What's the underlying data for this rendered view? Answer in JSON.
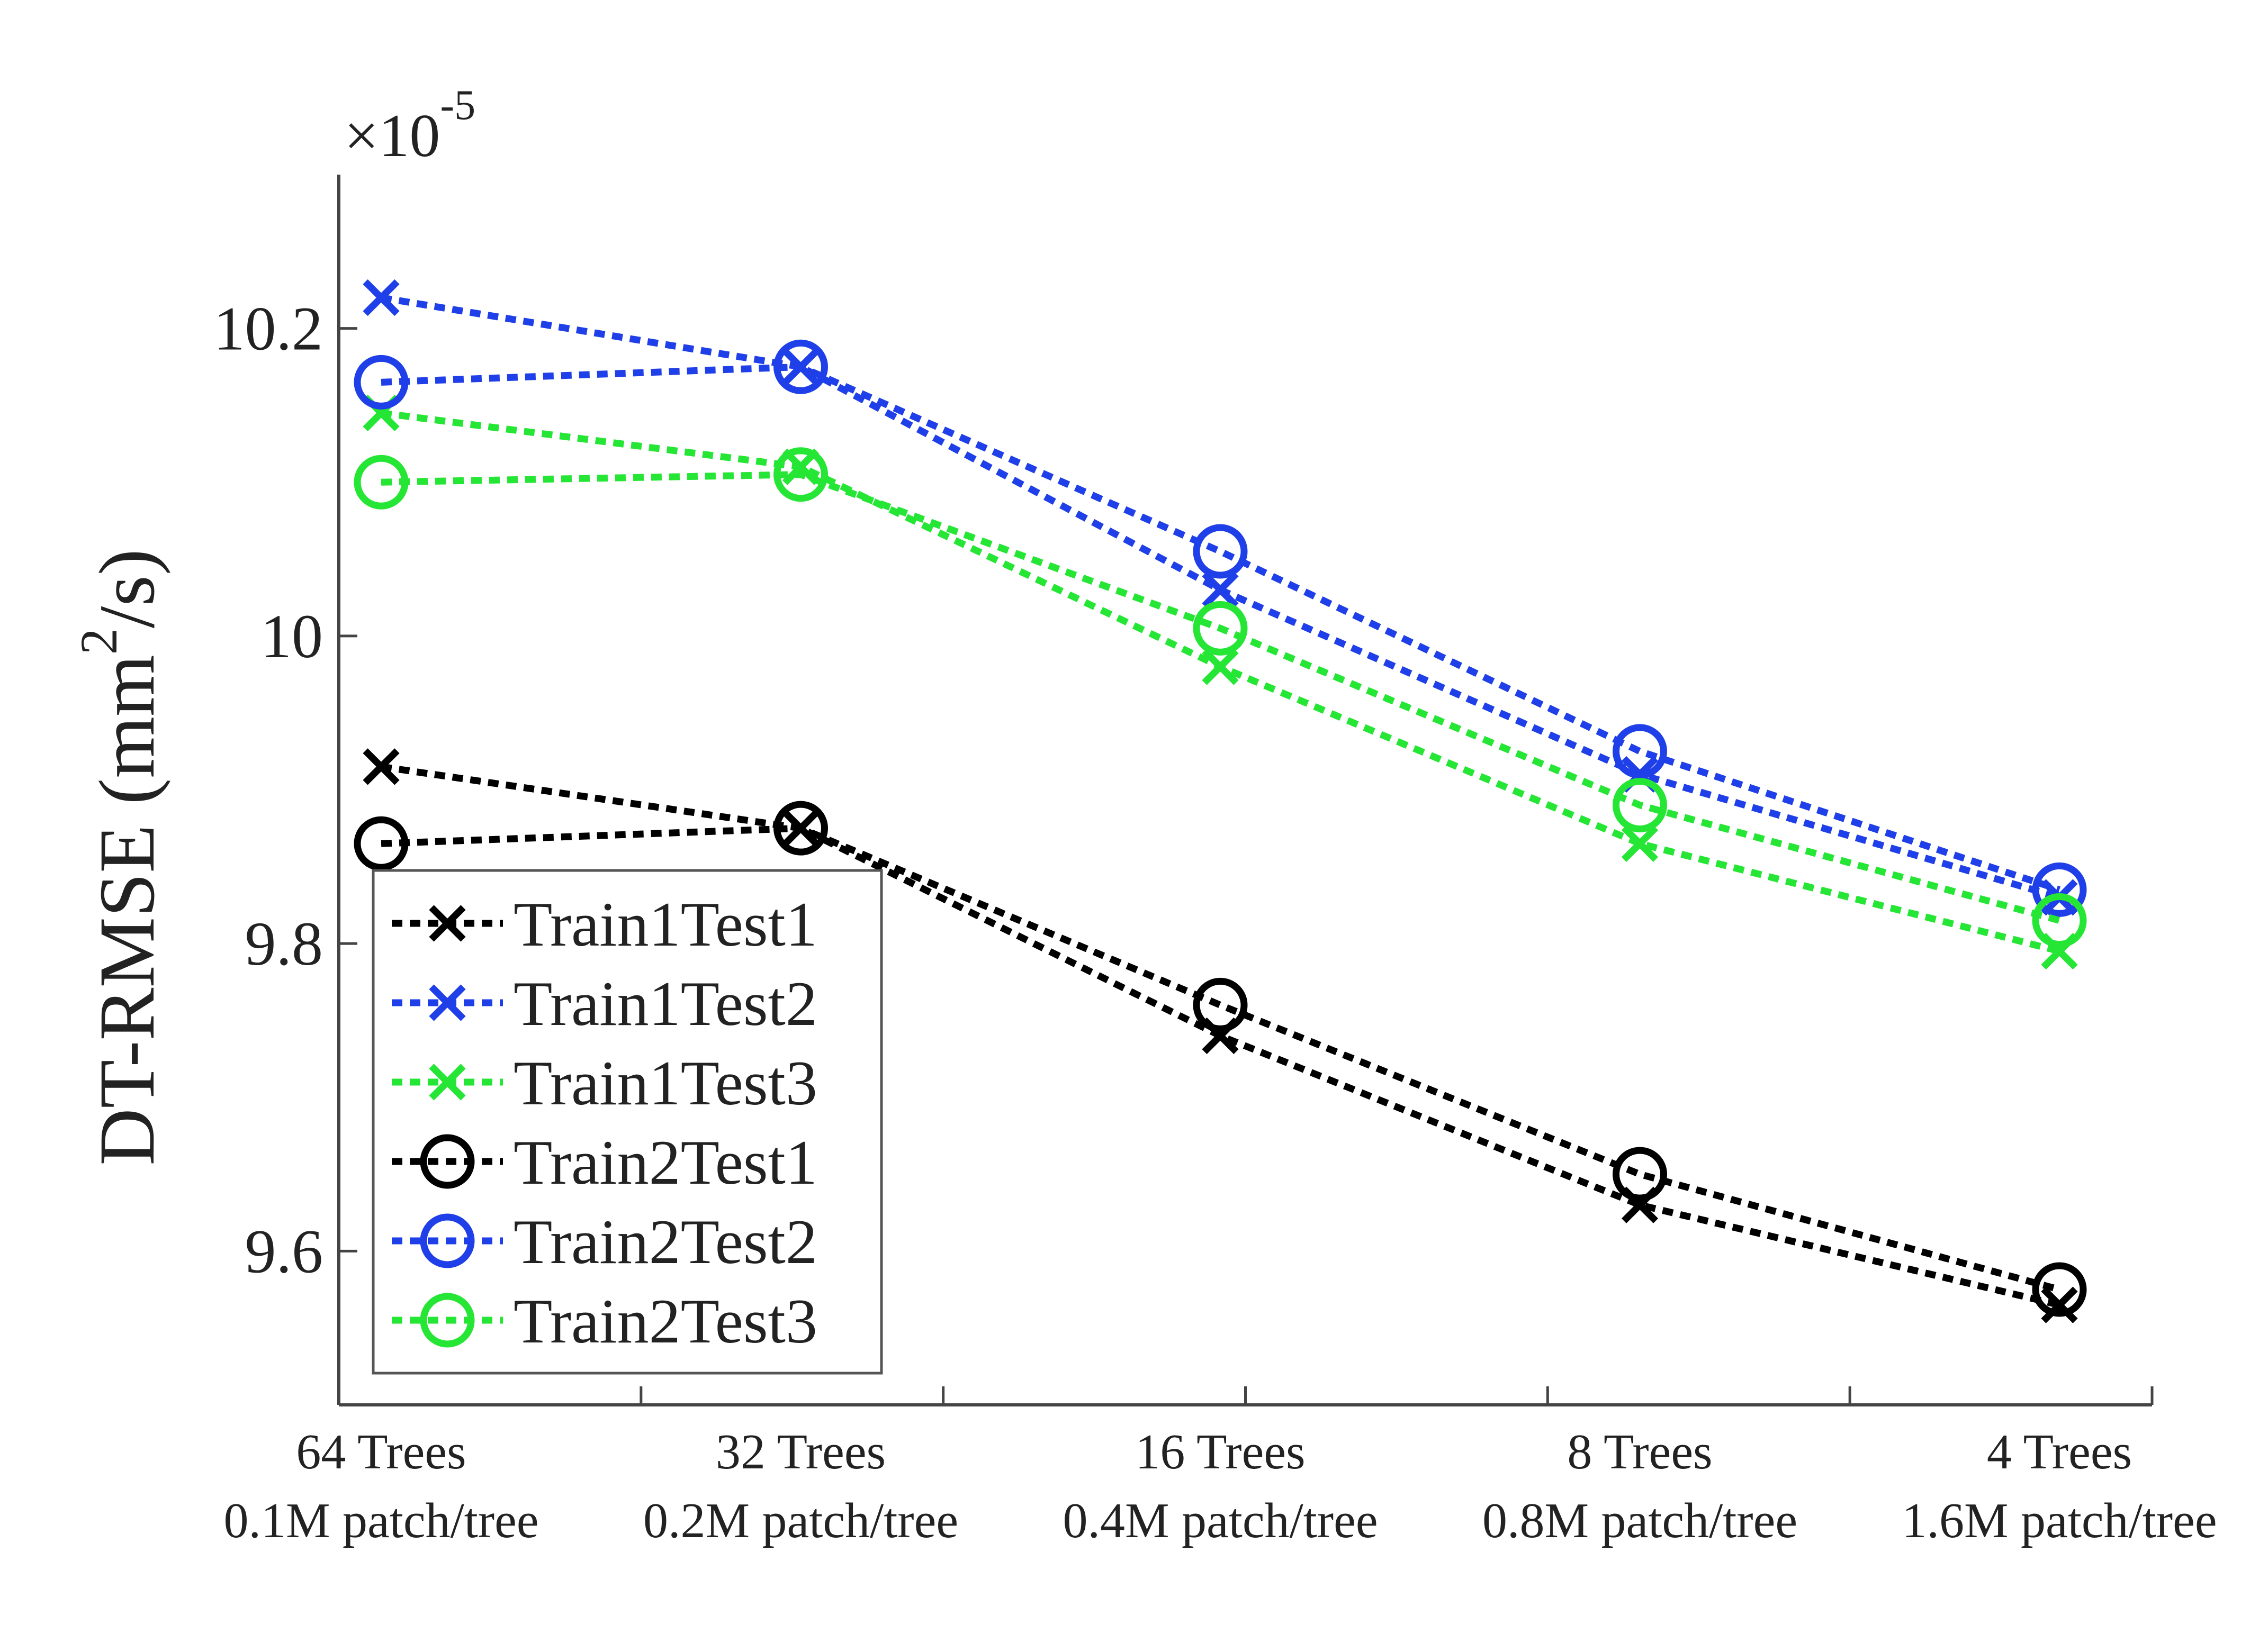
{
  "chart_data": {
    "type": "line",
    "title": "",
    "xlabel": "",
    "ylabel": {
      "main": "DT-RMSE (mm",
      "sup": "2",
      "tail": "/s)"
    },
    "y_multiplier": {
      "base": "×10",
      "exp": "-5"
    },
    "ylim": [
      9.5,
      10.3
    ],
    "yticks": [
      {
        "value": 9.6,
        "label": "9.6"
      },
      {
        "value": 9.8,
        "label": "9.8"
      },
      {
        "value": 10.0,
        "label": "10"
      },
      {
        "value": 10.2,
        "label": "10.2"
      }
    ],
    "categories": [
      {
        "line1": "64 Trees",
        "line2": "0.1M patch/tree"
      },
      {
        "line1": "32 Trees",
        "line2": "0.2M patch/tree"
      },
      {
        "line1": "16 Trees",
        "line2": "0.4M patch/tree"
      },
      {
        "line1": "8 Trees",
        "line2": "0.8M patch/tree"
      },
      {
        "line1": "4 Trees",
        "line2": "1.6M patch/tree"
      }
    ],
    "legend_position": "bottom-left",
    "series": [
      {
        "name": "Train1Test1",
        "color": "#000000",
        "marker": "x",
        "values": [
          9.915,
          9.875,
          9.74,
          9.63,
          9.565
        ]
      },
      {
        "name": "Train1Test2",
        "color": "#1f3fe8",
        "marker": "x",
        "values": [
          10.22,
          10.175,
          10.03,
          9.91,
          9.83
        ]
      },
      {
        "name": "Train1Test3",
        "color": "#26e635",
        "marker": "x",
        "values": [
          10.145,
          10.11,
          9.98,
          9.865,
          9.795
        ]
      },
      {
        "name": "Train2Test1",
        "color": "#000000",
        "marker": "o",
        "values": [
          9.865,
          9.875,
          9.76,
          9.65,
          9.575
        ]
      },
      {
        "name": "Train2Test2",
        "color": "#1f3fe8",
        "marker": "o",
        "values": [
          10.165,
          10.175,
          10.055,
          9.925,
          9.835
        ]
      },
      {
        "name": "Train2Test3",
        "color": "#26e635",
        "marker": "o",
        "values": [
          10.1,
          10.105,
          10.005,
          9.89,
          9.815
        ]
      }
    ]
  }
}
